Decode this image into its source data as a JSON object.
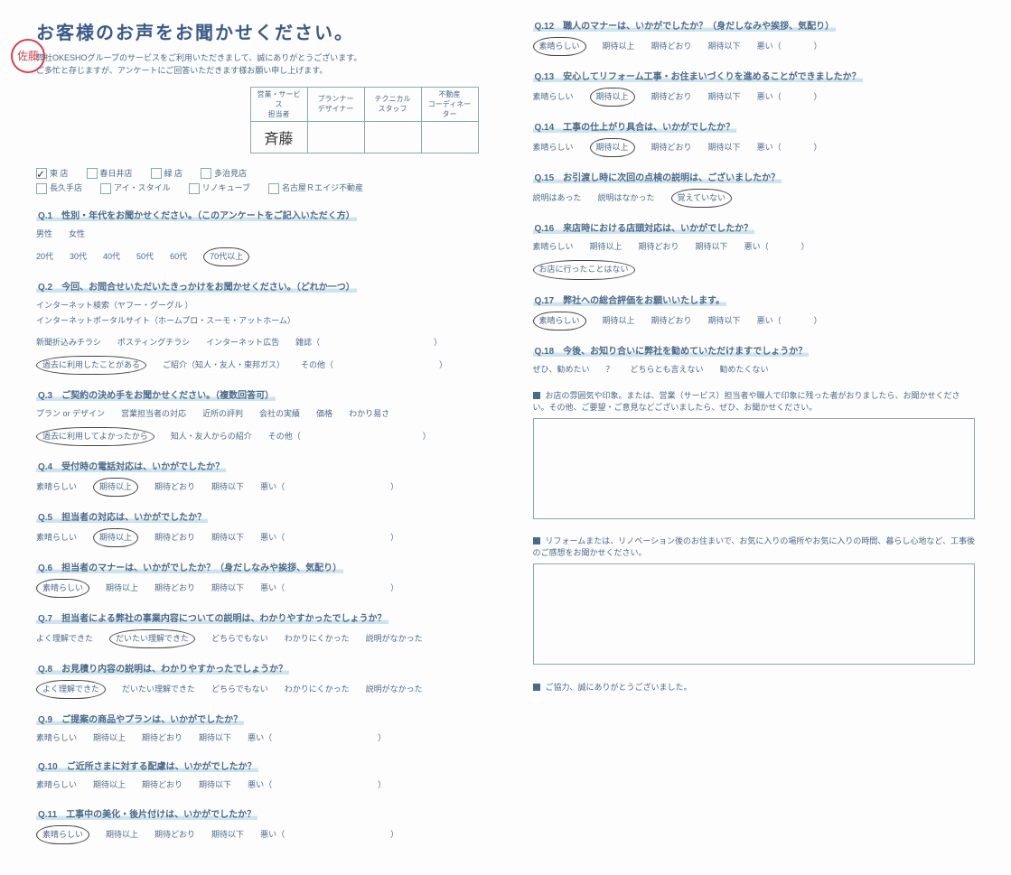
{
  "title": "お客様のお声をお聞かせください。",
  "intro_line1": "弊社OKESHOグループのサービスをご利用いただきまして、誠にありがとうございます。",
  "intro_line2": "ご多忙と存じますが、アンケートにご回答いただきます様お願い申し上げます。",
  "stamp": "佐藤",
  "staff_headers": [
    "営業・サービス\n担当者",
    "プランナー\nデザイナー",
    "テクニカル\nスタッフ",
    "不動産\nコーディネーター"
  ],
  "staff_sig": [
    "斉藤",
    "",
    "",
    ""
  ],
  "stores": [
    {
      "label": "東 店",
      "checked": true
    },
    {
      "label": "春日井店",
      "checked": false
    },
    {
      "label": "緑 店",
      "checked": false
    },
    {
      "label": "多治見店",
      "checked": false
    },
    {
      "label": "長久手店",
      "checked": false
    },
    {
      "label": "アイ・スタイル",
      "checked": false
    },
    {
      "label": "リノキューブ",
      "checked": false
    },
    {
      "label": "名古屋Ｒエイジ不動産",
      "checked": false
    }
  ],
  "questions": [
    {
      "no": "Q.1",
      "title": "性別・年代をお聞かせください。（このアンケートをご記入いただく方）",
      "lines": [
        {
          "opts": [
            {
              "t": "男性"
            },
            {
              "t": "女性"
            }
          ]
        },
        {
          "opts": [
            {
              "t": "20代"
            },
            {
              "t": "30代"
            },
            {
              "t": "40代"
            },
            {
              "t": "50代"
            },
            {
              "t": "60代"
            },
            {
              "t": "70代以上",
              "c": true
            }
          ]
        }
      ]
    },
    {
      "no": "Q.2",
      "title": "今回、お問合せいただいたきっかけをお聞かせください。（どれか一つ）",
      "lines": [
        {
          "opts": [
            {
              "t": "インターネット検索（ヤフー・グーグル ）"
            },
            {
              "t": "インターネットポータルサイト（ホームプロ・スーモ・アットホーム）"
            }
          ]
        },
        {
          "opts": [
            {
              "t": "新聞折込みチラシ"
            },
            {
              "t": "ポスティングチラシ"
            },
            {
              "t": "インターネット広告"
            },
            {
              "t": "雑誌（　　　　　　　　　　　　　　）"
            }
          ]
        },
        {
          "opts": [
            {
              "t": "過去に利用したことがある",
              "c": true
            },
            {
              "t": "ご紹介（知人・友人・東邦ガス）"
            },
            {
              "t": "その他（　　　　　　　　　　　　　）"
            }
          ]
        }
      ]
    },
    {
      "no": "Q.3",
      "title": "ご契約の決め手をお聞かせください。（複数回答可）",
      "lines": [
        {
          "opts": [
            {
              "t": "プラン or デザイン"
            },
            {
              "t": "営業担当者の対応"
            },
            {
              "t": "近所の評判"
            },
            {
              "t": "会社の実績"
            },
            {
              "t": "価格"
            },
            {
              "t": "わかり易さ"
            }
          ]
        },
        {
          "opts": [
            {
              "t": "過去に利用してよかったから",
              "c": true
            },
            {
              "t": "知人・友人からの紹介"
            },
            {
              "t": "その他（　　　　　　　　　　　　　　　）"
            }
          ]
        }
      ]
    },
    {
      "no": "Q.4",
      "title": "受付時の電話対応は、いかがでしたか？",
      "lines": [
        {
          "opts": [
            {
              "t": "素晴らしい"
            },
            {
              "t": "期待以上",
              "c": true
            },
            {
              "t": "期待どおり"
            },
            {
              "t": "期待以下"
            },
            {
              "t": "悪い（　　　　　　　　　　　　　）"
            }
          ]
        }
      ]
    },
    {
      "no": "Q.5",
      "title": "担当者の対応は、いかがでしたか？",
      "lines": [
        {
          "opts": [
            {
              "t": "素晴らしい"
            },
            {
              "t": "期待以上",
              "c": true
            },
            {
              "t": "期待どおり"
            },
            {
              "t": "期待以下"
            },
            {
              "t": "悪い（　　　　　　　　　　　　　）"
            }
          ]
        }
      ]
    },
    {
      "no": "Q.6",
      "title": "担当者のマナーは、いかがでしたか？（身だしなみや挨拶、気配り）",
      "lines": [
        {
          "opts": [
            {
              "t": "素晴らしい",
              "c": true
            },
            {
              "t": "期待以上"
            },
            {
              "t": "期待どおり"
            },
            {
              "t": "期待以下"
            },
            {
              "t": "悪い（　　　　　　　　　　　　　）"
            }
          ]
        }
      ]
    },
    {
      "no": "Q.7",
      "title": "担当者による弊社の事業内容についての説明は、わかりやすかったでしょうか？",
      "lines": [
        {
          "opts": [
            {
              "t": "よく理解できた"
            },
            {
              "t": "だいたい理解できた",
              "c": true
            },
            {
              "t": "どちらでもない"
            },
            {
              "t": "わかりにくかった"
            },
            {
              "t": "説明がなかった"
            }
          ]
        }
      ]
    },
    {
      "no": "Q.8",
      "title": "お見積り内容の説明は、わかりやすかったでしょうか？",
      "lines": [
        {
          "opts": [
            {
              "t": "よく理解できた",
              "c": true
            },
            {
              "t": "だいたい理解できた"
            },
            {
              "t": "どちらでもない"
            },
            {
              "t": "わかりにくかった"
            },
            {
              "t": "説明がなかった"
            }
          ]
        }
      ]
    },
    {
      "no": "Q.9",
      "title": "ご提案の商品やプランは、いかがでしたか？",
      "lines": [
        {
          "opts": [
            {
              "t": "素晴らしい"
            },
            {
              "t": "期待以上"
            },
            {
              "t": "期待どおり"
            },
            {
              "t": "期待以下"
            },
            {
              "t": "悪い（　　　　　　　　　　　　　）"
            }
          ]
        }
      ]
    },
    {
      "no": "Q.10",
      "title": "ご近所さまに対する配慮は、いかがでしたか？",
      "lines": [
        {
          "opts": [
            {
              "t": "素晴らしい"
            },
            {
              "t": "期待以上"
            },
            {
              "t": "期待どおり"
            },
            {
              "t": "期待以下"
            },
            {
              "t": "悪い（　　　　　　　　　　　　　）"
            }
          ]
        }
      ]
    },
    {
      "no": "Q.11",
      "title": "工事中の美化・後片付けは、いかがでしたか？",
      "lines": [
        {
          "opts": [
            {
              "t": "素晴らしい",
              "c": true
            },
            {
              "t": "期待以上"
            },
            {
              "t": "期待どおり"
            },
            {
              "t": "期待以下"
            },
            {
              "t": "悪い（　　　　　　　　　　　　　）"
            }
          ]
        }
      ]
    }
  ],
  "questions_right": [
    {
      "no": "Q.12",
      "title": "職人のマナーは、いかがでしたか？（身だしなみや挨拶、気配り）",
      "lines": [
        {
          "opts": [
            {
              "t": "素晴らしい",
              "c": true
            },
            {
              "t": "期待以上"
            },
            {
              "t": "期待どおり"
            },
            {
              "t": "期待以下"
            },
            {
              "t": "悪い（　　　　）"
            }
          ]
        }
      ]
    },
    {
      "no": "Q.13",
      "title": "安心してリフォーム工事・お住まいづくりを進めることができましたか？",
      "lines": [
        {
          "opts": [
            {
              "t": "素晴らしい"
            },
            {
              "t": "期待以上",
              "c": true
            },
            {
              "t": "期待どおり"
            },
            {
              "t": "期待以下"
            },
            {
              "t": "悪い（　　　　）"
            }
          ]
        }
      ]
    },
    {
      "no": "Q.14",
      "title": "工事の仕上がり具合は、いかがでしたか？",
      "lines": [
        {
          "opts": [
            {
              "t": "素晴らしい"
            },
            {
              "t": "期待以上",
              "c": true
            },
            {
              "t": "期待どおり"
            },
            {
              "t": "期待以下"
            },
            {
              "t": "悪い（　　　　）"
            }
          ]
        }
      ]
    },
    {
      "no": "Q.15",
      "title": "お引渡し時に次回の点検の説明は、ございましたか？",
      "lines": [
        {
          "opts": [
            {
              "t": "説明はあった"
            },
            {
              "t": "説明はなかった"
            },
            {
              "t": "覚えていない",
              "c": true
            }
          ]
        }
      ]
    },
    {
      "no": "Q.16",
      "title": "来店時における店頭対応は、いかがでしたか？",
      "lines": [
        {
          "opts": [
            {
              "t": "素晴らしい"
            },
            {
              "t": "期待以上"
            },
            {
              "t": "期待どおり"
            },
            {
              "t": "期待以下"
            },
            {
              "t": "悪い（　　　　）"
            }
          ]
        },
        {
          "opts": [
            {
              "t": "お店に行ったことはない",
              "c": true
            }
          ]
        }
      ]
    },
    {
      "no": "Q.17",
      "title": "弊社への総合評価をお願いいたします。",
      "lines": [
        {
          "opts": [
            {
              "t": "素晴らしい",
              "c": true
            },
            {
              "t": "期待以上"
            },
            {
              "t": "期待どおり"
            },
            {
              "t": "期待以下"
            },
            {
              "t": "悪い（　　　　）"
            }
          ]
        }
      ]
    },
    {
      "no": "Q.18",
      "title": "今後、お知り合いに弊社を勧めていただけますでしょうか？",
      "lines": [
        {
          "opts": [
            {
              "t": "ぜひ、勧めたい"
            },
            {
              "t": "？"
            },
            {
              "t": "どちらとも言えない"
            },
            {
              "t": "勧めたくない"
            }
          ]
        }
      ]
    }
  ],
  "freebox1_label": "お店の雰囲気や印象。または、営業（サービス）担当者や職人で印象に残った者がおりましたら、お聞かせください。その他、ご要望・ご意見などございましたら、ぜひ、お聞かせください。",
  "freebox2_label": "リフォームまたは、リノベーション後のお住まいで、お気に入りの場所やお気に入りの時間、暮らし心地など、工事後のご感想をお聞かせください。",
  "thanks": "ご協力、誠にありがとうございました。",
  "colors": {
    "text": "#4a6a8a",
    "highlight": "#cfe3ef",
    "border": "#8aa",
    "stamp": "#c23",
    "handwrite": "#333"
  }
}
